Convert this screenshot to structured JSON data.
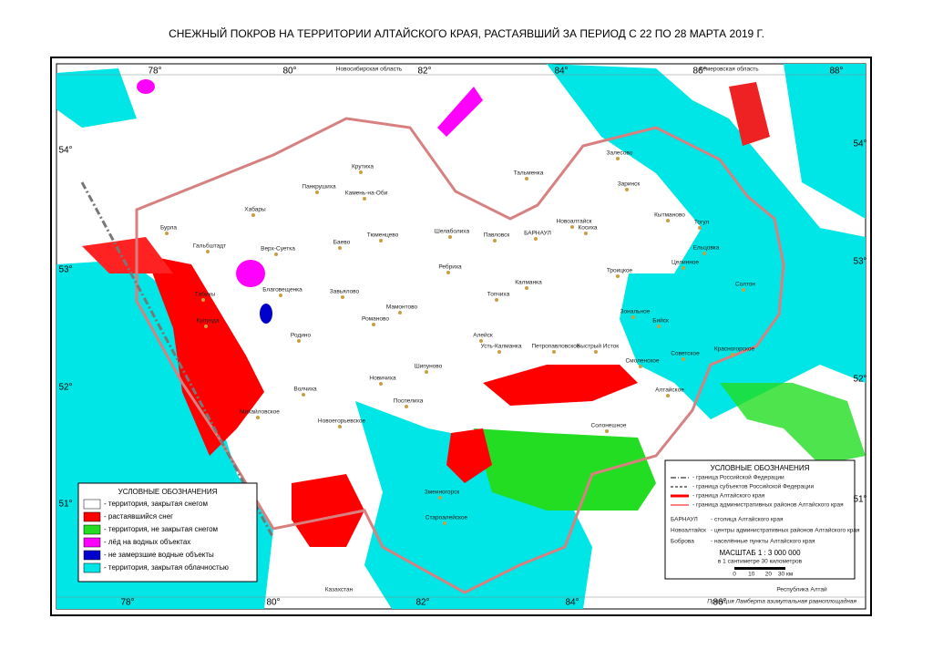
{
  "title": "СНЕЖНЫЙ ПОКРОВ НА ТЕРРИТОРИИ АЛТАЙСКОГО КРАЯ, РАСТАЯВШИЙ ЗА ПЕРИОД С 22 ПО 28 МАРТА 2019 Г.",
  "graticule": {
    "top": [
      "78°",
      "80°",
      "82°",
      "84°",
      "86°",
      "88°"
    ],
    "bottom": [
      "78°",
      "80°",
      "82°",
      "84°",
      "86°"
    ],
    "left": [
      "54°",
      "53°",
      "52°",
      "51°"
    ],
    "right": [
      "54°",
      "53°",
      "52°",
      "51°"
    ]
  },
  "neighbors": [
    "Новосибирская область",
    "Кемеровская область",
    "Казахстан",
    "Республика Алтай"
  ],
  "places": [
    "Крутиха",
    "Панкрушиха",
    "Камень-на-Оби",
    "Хабары",
    "Баево",
    "Верх-Суетка",
    "Гальбштадт",
    "Бурла",
    "Благовещенка",
    "Завьялово",
    "Табуны",
    "Кулунда",
    "Мамонтово",
    "Романово",
    "Родино",
    "Волчиха",
    "Михайловское",
    "Новоегорьевское",
    "Поспелиха",
    "Новичиха",
    "Шипуново",
    "Алейск",
    "Ребриха",
    "Павловск",
    "Шелаболиха",
    "Тюменцево",
    "Тальменка",
    "Заринск",
    "Залесово",
    "Косиха",
    "Новоалтайск",
    "БАРНАУЛ",
    "Калманка",
    "Топчиха",
    "Троицкое",
    "Кытманово",
    "Тогул",
    "Ельцовка",
    "Целинное",
    "Солтон",
    "Зональное",
    "Бийск",
    "Советское",
    "Смоленское",
    "Красногорское",
    "Быстрый Исток",
    "Петропавловское",
    "Усть-Калманка",
    "Алтайское",
    "Солонешное",
    "Змеиногорск",
    "Староалейское"
  ],
  "legend_left": {
    "title": "УСЛОВНЫЕ ОБОЗНАЧЕНИЯ",
    "items": [
      {
        "color": "#ffffff",
        "label": "- территория, закрытая снегом"
      },
      {
        "color": "#ff0000",
        "label": "- растаявшийся снег"
      },
      {
        "color": "#22dd22",
        "label": "- территория, не закрытая снегом"
      },
      {
        "color": "#ff00ff",
        "label": "- лёд на водных объектах"
      },
      {
        "color": "#0000cc",
        "label": "- не замерзшие водные объекты"
      },
      {
        "color": "#00e5e5",
        "label": "- территория, закрытая облачностью"
      }
    ]
  },
  "legend_right": {
    "title": "УСЛОВНЫЕ ОБОЗНАЧЕНИЯ",
    "lines": [
      "- граница Российской Федерации",
      "- граница субъектов Российской Федерации",
      "- граница Алтайского края",
      "- граница административных районов Алтайского края"
    ],
    "symbols": [
      {
        "symbol": "БАРНАУЛ",
        "label": "- столица Алтайского края"
      },
      {
        "symbol": "Новоалтайск",
        "label": "- центры административных районов Алтайского края"
      },
      {
        "symbol": "Боброва",
        "label": "- населённые пункты Алтайского края"
      }
    ],
    "scale": "МАСШТАБ    1 : 3 000 000",
    "scale_note": "в 1 сантиметре 30 километров",
    "scale_ticks": [
      "0",
      "10",
      "20",
      "30 км"
    ]
  },
  "projection": "Проекция Ламберта азимутальная равноплощадная"
}
